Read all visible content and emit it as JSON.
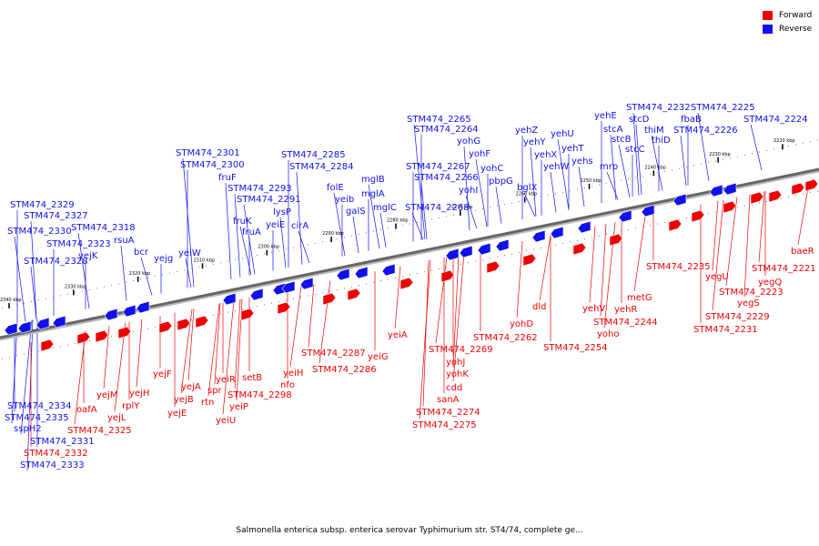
{
  "colors": {
    "forward": "#ee0000",
    "reverse": "#1010ee",
    "axis": "#666666"
  },
  "legend": {
    "forward": "Forward",
    "reverse": "Reverse"
  },
  "caption": "Salmonella enterica subsp. enterica serovar Typhimurium str. ST4/74, complete ge...",
  "ticks": [
    {
      "label": "2340 kbp",
      "kb": 2340
    },
    {
      "label": "2330 kbp",
      "kb": 2330
    },
    {
      "label": "2320 kbp",
      "kb": 2320
    },
    {
      "label": "2310 kbp",
      "kb": 2310
    },
    {
      "label": "2300 kbp",
      "kb": 2300
    },
    {
      "label": "2290 kbp",
      "kb": 2290
    },
    {
      "label": "2280 kbp",
      "kb": 2280
    },
    {
      "label": "2270 kbp",
      "kb": 2270
    },
    {
      "label": "2260 kbp",
      "kb": 2260
    },
    {
      "label": "2250 kbp",
      "kb": 2250
    },
    {
      "label": "2240 kbp",
      "kb": 2240
    },
    {
      "label": "2230 kbp",
      "kb": 2230
    },
    {
      "label": "2220 kbp",
      "kb": 2220
    }
  ],
  "genes": {
    "reverse": [
      "STM474_2329",
      "STM474_2327",
      "STM474_2330",
      "STM474_2323",
      "STM474_2328",
      "STM474_2318",
      "yejK",
      "rsuA",
      "bcr",
      "yejg",
      "yeiW",
      "STM474_2301",
      "STM474_2300",
      "fruF",
      "fruK",
      "fruA",
      "STM474_2293",
      "STM474_2291",
      "yeiE",
      "lysP",
      "cirA",
      "STM474_2285",
      "STM474_2284",
      "folE",
      "yeib",
      "galS",
      "mglB",
      "mglA",
      "mglC",
      "STM474_2265",
      "STM474_2264",
      "yohG",
      "yohF",
      "STM474_2267",
      "STM474_2266",
      "yohI",
      "yohC",
      "pbpG",
      "STM474_2268",
      "yehZ",
      "yehY",
      "bglX",
      "yehX",
      "yehW",
      "yehU",
      "yehT",
      "yehs",
      "mrp",
      "yehE",
      "stcA",
      "stcB",
      "stcC",
      "stcD",
      "thiM",
      "thiD",
      "STM474_2232",
      "STM474_2225",
      "fbaB",
      "STM474_2226",
      "STM474_2224",
      "STM474_2334",
      "STM474_2335",
      "sspH2",
      "STM474_2331",
      "STM474_2333"
    ],
    "forward": [
      "oafA",
      "yejM",
      "yejL",
      "rplY",
      "yejH",
      "STM474_2325",
      "yejF",
      "yejA",
      "yejB",
      "yejE",
      "spr",
      "rtn",
      "yeiR",
      "yeiP",
      "yeiU",
      "setB",
      "STM474_2298",
      "yeiH",
      "nfo",
      "STM474_2287",
      "STM474_2286",
      "yeiG",
      "yeiA",
      "STM474_2269",
      "yohJ",
      "yohK",
      "cdd",
      "sanA",
      "STM474_2274",
      "STM474_2275",
      "STM474_2262",
      "yohD",
      "dld",
      "STM474_2254",
      "yehV",
      "yoho",
      "yehR",
      "STM474_2244",
      "metG",
      "STM474_2235",
      "yegU",
      "STM474_2229",
      "STM474_2231",
      "yegS",
      "STM474_2223",
      "yegQ",
      "STM474_2221",
      "baeR",
      "STM474_2332"
    ]
  }
}
